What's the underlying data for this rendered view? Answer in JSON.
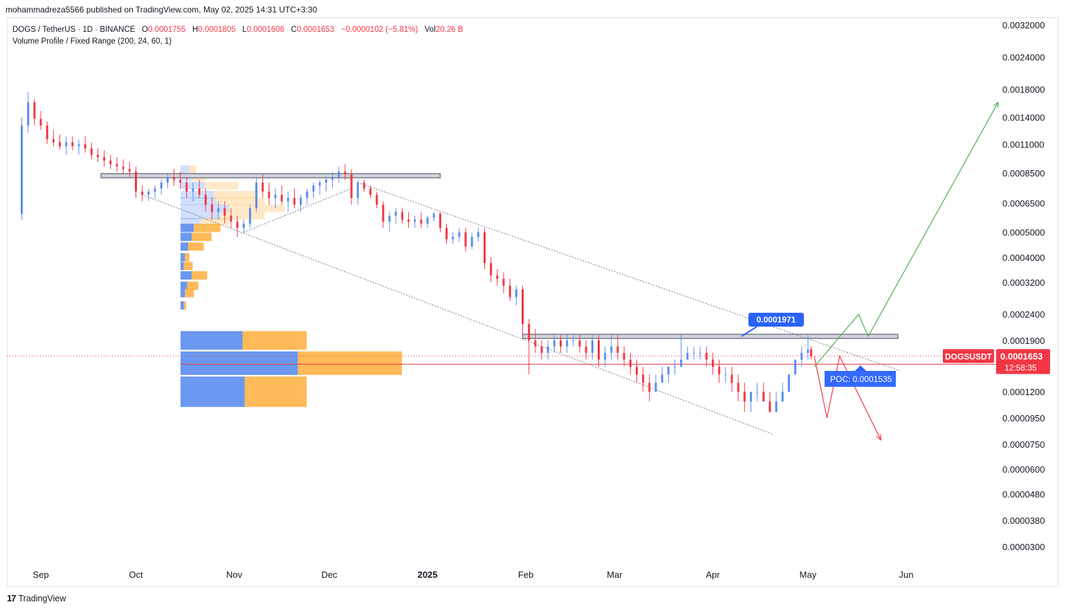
{
  "header": {
    "published": "mohammadreza5566 published on TradingView.com, May 02, 2025 14:31 UTC+3:30"
  },
  "legend": {
    "symbol": "DOGS / TetherUS · 1D · BINANCE",
    "o_label": "O",
    "o": "0.0001755",
    "h_label": "H",
    "h": "0.0001805",
    "l_label": "L",
    "l": "0.0001606",
    "c_label": "C",
    "c": "0.0001653",
    "change": "−0.0000102 (−5.81%)",
    "vol_label": "Vol",
    "vol": "20.26 B",
    "indicator": "Volume Profile / Fixed Range (200, 24, 60, 1)"
  },
  "branding": {
    "logo": "17",
    "name": "TradingView"
  },
  "colors": {
    "up": "#5b8def",
    "down": "#f23645",
    "vp_up": "#5b8def",
    "vp_down": "#ffb347",
    "label_blue": "#2962ff",
    "arrow_green": "#4caf50",
    "arrow_red": "#f23645"
  },
  "chart_data": {
    "type": "candlestick",
    "price_axis": {
      "scale": "log",
      "ticks": [
        "0.0032000",
        "0.0024000",
        "0.0018000",
        "0.0014000",
        "0.0011000",
        "0.0008500",
        "0.0006500",
        "0.0005000",
        "0.0004000",
        "0.0003200",
        "0.0002400",
        "0.0001900",
        "0.0001200",
        "0.0000950",
        "0.0000750",
        "0.0000600",
        "0.0000480",
        "0.0000380",
        "0.0000300"
      ]
    },
    "time_axis": {
      "labels": [
        "Sep",
        "Oct",
        "Nov",
        "Dec",
        "2025",
        "Feb",
        "Mar",
        "Apr",
        "May",
        "Jun"
      ]
    },
    "current_price": {
      "symbol": "DOGSUSDT",
      "price": "0.0001653",
      "countdown": "12:58:35"
    },
    "poc": {
      "text": "POC: 0.0001535",
      "value": 0.0001535
    },
    "callout": {
      "text": "0.0001971",
      "value": 0.0001971
    },
    "series_daily": [
      [
        "2024-08-26",
        0.00059,
        0.0014,
        0.00056,
        0.0013
      ],
      [
        "2024-08-28",
        0.0013,
        0.00175,
        0.00122,
        0.0016
      ],
      [
        "2024-08-30",
        0.0016,
        0.00165,
        0.0013,
        0.00138
      ],
      [
        "2024-09-01",
        0.00138,
        0.00148,
        0.00125,
        0.0013
      ],
      [
        "2024-09-03",
        0.0013,
        0.00135,
        0.0011,
        0.00115
      ],
      [
        "2024-09-05",
        0.00115,
        0.00125,
        0.00108,
        0.00112
      ],
      [
        "2024-09-07",
        0.00112,
        0.0012,
        0.00105,
        0.00108
      ],
      [
        "2024-09-09",
        0.00108,
        0.00118,
        0.001,
        0.00112
      ],
      [
        "2024-09-11",
        0.00112,
        0.00118,
        0.00104,
        0.00108
      ],
      [
        "2024-09-13",
        0.00108,
        0.00115,
        0.001,
        0.0011
      ],
      [
        "2024-09-15",
        0.0011,
        0.00118,
        0.00102,
        0.00106
      ],
      [
        "2024-09-17",
        0.00106,
        0.00112,
        0.00096,
        0.001
      ],
      [
        "2024-09-19",
        0.001,
        0.00106,
        0.00094,
        0.00098
      ],
      [
        "2024-09-21",
        0.00098,
        0.00104,
        0.0009,
        0.00095
      ],
      [
        "2024-09-23",
        0.00095,
        0.001,
        0.00088,
        0.00092
      ],
      [
        "2024-09-25",
        0.00092,
        0.00098,
        0.00086,
        0.0009
      ],
      [
        "2024-09-27",
        0.0009,
        0.00096,
        0.00084,
        0.00088
      ],
      [
        "2024-09-29",
        0.00088,
        0.00094,
        0.00082,
        0.00086
      ],
      [
        "2024-10-01",
        0.00086,
        0.0009,
        0.00068,
        0.00072
      ],
      [
        "2024-10-03",
        0.00072,
        0.00076,
        0.00066,
        0.0007
      ],
      [
        "2024-10-05",
        0.0007,
        0.00074,
        0.00066,
        0.00072
      ],
      [
        "2024-10-07",
        0.00072,
        0.00076,
        0.00068,
        0.00074
      ],
      [
        "2024-10-09",
        0.00074,
        0.0008,
        0.0007,
        0.00078
      ],
      [
        "2024-10-11",
        0.00078,
        0.00084,
        0.00074,
        0.00082
      ],
      [
        "2024-10-13",
        0.00082,
        0.00088,
        0.00076,
        0.0008
      ],
      [
        "2024-10-15",
        0.0008,
        0.00086,
        0.00074,
        0.00078
      ],
      [
        "2024-10-17",
        0.00078,
        0.00082,
        0.00068,
        0.00072
      ],
      [
        "2024-10-19",
        0.00072,
        0.00078,
        0.00066,
        0.00074
      ],
      [
        "2024-10-21",
        0.00074,
        0.0008,
        0.00068,
        0.0007
      ],
      [
        "2024-10-23",
        0.0007,
        0.00074,
        0.0006,
        0.00064
      ],
      [
        "2024-10-25",
        0.00064,
        0.00068,
        0.00056,
        0.0006
      ],
      [
        "2024-10-27",
        0.0006,
        0.00066,
        0.00056,
        0.00062
      ],
      [
        "2024-10-29",
        0.00062,
        0.00066,
        0.00054,
        0.00058
      ],
      [
        "2024-10-31",
        0.00058,
        0.00062,
        0.00052,
        0.00055
      ],
      [
        "2024-11-02",
        0.00055,
        0.00058,
        0.00048,
        0.00052
      ],
      [
        "2024-11-04",
        0.00052,
        0.00056,
        0.0005,
        0.00054
      ],
      [
        "2024-11-06",
        0.00054,
        0.00064,
        0.00052,
        0.00062
      ],
      [
        "2024-11-08",
        0.00062,
        0.00082,
        0.0006,
        0.00078
      ],
      [
        "2024-11-10",
        0.00078,
        0.00084,
        0.00068,
        0.00072
      ],
      [
        "2024-11-12",
        0.00072,
        0.00078,
        0.00064,
        0.00068
      ],
      [
        "2024-11-14",
        0.00068,
        0.00074,
        0.00062,
        0.0007
      ],
      [
        "2024-11-16",
        0.0007,
        0.00076,
        0.00064,
        0.00066
      ],
      [
        "2024-11-18",
        0.00066,
        0.00072,
        0.0006,
        0.00068
      ],
      [
        "2024-11-20",
        0.00068,
        0.00074,
        0.00062,
        0.00064
      ],
      [
        "2024-11-22",
        0.00064,
        0.0007,
        0.0006,
        0.00068
      ],
      [
        "2024-11-24",
        0.00068,
        0.00074,
        0.00064,
        0.00072
      ],
      [
        "2024-11-26",
        0.00072,
        0.00078,
        0.00068,
        0.00076
      ],
      [
        "2024-11-28",
        0.00076,
        0.0008,
        0.0007,
        0.00078
      ],
      [
        "2024-11-30",
        0.00078,
        0.00082,
        0.00072,
        0.0008
      ],
      [
        "2024-12-02",
        0.0008,
        0.00086,
        0.00074,
        0.00082
      ],
      [
        "2024-12-04",
        0.00082,
        0.0009,
        0.00078,
        0.00086
      ],
      [
        "2024-12-06",
        0.00086,
        0.00092,
        0.0008,
        0.00084
      ],
      [
        "2024-12-08",
        0.00084,
        0.00088,
        0.00064,
        0.00068
      ],
      [
        "2024-12-10",
        0.00068,
        0.0008,
        0.00064,
        0.00078
      ],
      [
        "2024-12-12",
        0.00078,
        0.0008,
        0.00072,
        0.00074
      ],
      [
        "2024-12-14",
        0.00074,
        0.00076,
        0.00068,
        0.0007
      ],
      [
        "2024-12-16",
        0.0007,
        0.00072,
        0.00062,
        0.00064
      ],
      [
        "2024-12-18",
        0.00064,
        0.00066,
        0.00052,
        0.00055
      ],
      [
        "2024-12-20",
        0.00055,
        0.0006,
        0.0005,
        0.00058
      ],
      [
        "2024-12-22",
        0.00058,
        0.00062,
        0.00054,
        0.0006
      ],
      [
        "2024-12-24",
        0.0006,
        0.00062,
        0.00054,
        0.00056
      ],
      [
        "2024-12-26",
        0.00056,
        0.0006,
        0.00052,
        0.00055
      ],
      [
        "2024-12-28",
        0.00055,
        0.00058,
        0.00052,
        0.00056
      ],
      [
        "2024-12-30",
        0.00056,
        0.0006,
        0.00052,
        0.00054
      ],
      [
        "2025-01-01",
        0.00054,
        0.00058,
        0.00052,
        0.00057
      ],
      [
        "2025-01-03",
        0.00057,
        0.0006,
        0.00055,
        0.00059
      ],
      [
        "2025-01-05",
        0.00059,
        0.0006,
        0.0005,
        0.00052
      ],
      [
        "2025-01-07",
        0.00052,
        0.00054,
        0.00045,
        0.00047
      ],
      [
        "2025-01-09",
        0.00047,
        0.0005,
        0.00045,
        0.00048
      ],
      [
        "2025-01-11",
        0.00048,
        0.00052,
        0.00046,
        0.0005
      ],
      [
        "2025-01-13",
        0.0005,
        0.00052,
        0.00042,
        0.00044
      ],
      [
        "2025-01-15",
        0.00044,
        0.0005,
        0.00043,
        0.00048
      ],
      [
        "2025-01-17",
        0.00048,
        0.00052,
        0.00046,
        0.0005
      ],
      [
        "2025-01-19",
        0.0005,
        0.00052,
        0.00036,
        0.00038
      ],
      [
        "2025-01-21",
        0.00038,
        0.0004,
        0.00032,
        0.00034
      ],
      [
        "2025-01-23",
        0.00034,
        0.00036,
        0.00031,
        0.00033
      ],
      [
        "2025-01-25",
        0.00033,
        0.00035,
        0.00029,
        0.00031
      ],
      [
        "2025-01-27",
        0.00031,
        0.00033,
        0.00027,
        0.00028
      ],
      [
        "2025-01-29",
        0.00028,
        0.00031,
        0.00026,
        0.0003
      ],
      [
        "2025-01-31",
        0.0003,
        0.00031,
        0.0002,
        0.00022
      ],
      [
        "2025-02-02",
        0.00022,
        0.00023,
        0.00014,
        0.00019
      ],
      [
        "2025-02-04",
        0.00019,
        0.00021,
        0.00017,
        0.00018
      ],
      [
        "2025-02-06",
        0.00018,
        0.00019,
        0.00016,
        0.00017
      ],
      [
        "2025-02-08",
        0.00017,
        0.00019,
        0.00016,
        0.00018
      ],
      [
        "2025-02-10",
        0.00018,
        0.0002,
        0.00017,
        0.00019
      ],
      [
        "2025-02-12",
        0.00019,
        0.0002,
        0.00017,
        0.00018
      ],
      [
        "2025-02-14",
        0.00018,
        0.0002,
        0.00017,
        0.00019
      ],
      [
        "2025-02-16",
        0.00019,
        0.0002,
        0.00018,
        0.00019
      ],
      [
        "2025-02-18",
        0.00019,
        0.0002,
        0.00017,
        0.00018
      ],
      [
        "2025-02-20",
        0.00018,
        0.00019,
        0.00016,
        0.00017
      ],
      [
        "2025-02-22",
        0.00017,
        0.0002,
        0.00016,
        0.00019
      ],
      [
        "2025-02-24",
        0.00019,
        0.0002,
        0.00015,
        0.00016
      ],
      [
        "2025-02-26",
        0.00016,
        0.00018,
        0.00015,
        0.00017
      ],
      [
        "2025-02-28",
        0.00017,
        0.0002,
        0.00016,
        0.00018
      ],
      [
        "2025-03-02",
        0.00018,
        0.0002,
        0.00016,
        0.00017
      ],
      [
        "2025-03-04",
        0.00017,
        0.00018,
        0.00015,
        0.00016
      ],
      [
        "2025-03-06",
        0.00016,
        0.00017,
        0.00014,
        0.00015
      ],
      [
        "2025-03-08",
        0.00015,
        0.00016,
        0.00013,
        0.00014
      ],
      [
        "2025-03-10",
        0.00014,
        0.00015,
        0.00012,
        0.00013
      ],
      [
        "2025-03-12",
        0.00013,
        0.00014,
        0.00011,
        0.00012
      ],
      [
        "2025-03-14",
        0.00012,
        0.00014,
        0.00012,
        0.00013
      ],
      [
        "2025-03-16",
        0.00013,
        0.00015,
        0.00013,
        0.00014
      ],
      [
        "2025-03-18",
        0.00014,
        0.00015,
        0.00013,
        0.00015
      ],
      [
        "2025-03-20",
        0.00015,
        0.00016,
        0.00014,
        0.00015
      ],
      [
        "2025-03-22",
        0.00015,
        0.0002,
        0.00015,
        0.00016
      ],
      [
        "2025-03-24",
        0.00016,
        0.00018,
        0.00016,
        0.00017
      ],
      [
        "2025-03-26",
        0.00017,
        0.00018,
        0.00016,
        0.00017
      ],
      [
        "2025-03-28",
        0.00017,
        0.00018,
        0.00016,
        0.00017
      ],
      [
        "2025-03-30",
        0.00017,
        0.00018,
        0.00015,
        0.00016
      ],
      [
        "2025-04-01",
        0.00016,
        0.00017,
        0.00014,
        0.00015
      ],
      [
        "2025-04-03",
        0.00015,
        0.00016,
        0.00013,
        0.00014
      ],
      [
        "2025-04-05",
        0.00014,
        0.00015,
        0.00013,
        0.00014
      ],
      [
        "2025-04-07",
        0.00014,
        0.00015,
        0.00012,
        0.00013
      ],
      [
        "2025-04-09",
        0.00013,
        0.00014,
        0.00011,
        0.00012
      ],
      [
        "2025-04-11",
        0.00012,
        0.00013,
        0.0001,
        0.00011
      ],
      [
        "2025-04-13",
        0.00011,
        0.00012,
        0.0001,
        0.00012
      ],
      [
        "2025-04-15",
        0.00012,
        0.00013,
        0.00011,
        0.00012
      ],
      [
        "2025-04-17",
        0.00012,
        0.00013,
        0.00011,
        0.00011
      ],
      [
        "2025-04-19",
        0.00011,
        0.00012,
        0.0001,
        0.0001
      ],
      [
        "2025-04-21",
        0.0001,
        0.00012,
        0.0001,
        0.00011
      ],
      [
        "2025-04-23",
        0.00011,
        0.00013,
        0.00011,
        0.00012
      ],
      [
        "2025-04-25",
        0.00012,
        0.00014,
        0.00012,
        0.00014
      ],
      [
        "2025-04-27",
        0.00014,
        0.00016,
        0.00014,
        0.00016
      ],
      [
        "2025-04-29",
        0.00016,
        0.00018,
        0.00015,
        0.00017
      ],
      [
        "2025-05-01",
        0.00017,
        0.0002,
        0.00016,
        0.000175
      ],
      [
        "2025-05-02",
        0.0001755,
        0.0001805,
        0.0001606,
        0.0001653
      ]
    ],
    "horizontal_zones": [
      {
        "from": "2024-09-20",
        "to": "2025-01-05",
        "value": 0.00083
      },
      {
        "from": "2025-01-31",
        "to": "2025-06-30",
        "value": 0.000197
      }
    ],
    "current_line": 0.0001653,
    "poc_line": 0.0001535,
    "channel_lines": [
      {
        "from": [
          "2024-10-03",
          0.0007
        ],
        "to": [
          "2025-04-20",
          8.2e-05
        ]
      },
      {
        "from": [
          "2024-12-10",
          0.00078
        ],
        "to": [
          "2025-05-30",
          0.000145
        ]
      },
      {
        "from": [
          "2024-11-04",
          0.0005
        ],
        "to": [
          "2024-12-08",
          0.00074
        ]
      }
    ],
    "projection_up": [
      [
        "2025-05-03",
        0.00015
      ],
      [
        "2025-05-17",
        0.00024
      ],
      [
        "2025-05-20",
        0.000197
      ],
      [
        "2025-06-30",
        0.0016
      ]
    ],
    "projection_down": [
      [
        "2025-05-03",
        0.000165
      ],
      [
        "2025-05-07",
        9.5e-05
      ],
      [
        "2025-05-11",
        0.000165
      ],
      [
        "2025-05-24",
        7.8e-05
      ]
    ],
    "volume_profile": {
      "upper": [
        [
          0.00088,
          0.08,
          0.06
        ],
        [
          0.00082,
          0.1,
          0.14
        ],
        [
          0.00076,
          0.22,
          0.3
        ],
        [
          0.0007,
          0.3,
          0.4
        ],
        [
          0.00066,
          0.32,
          0.44
        ],
        [
          0.00062,
          0.44,
          0.5
        ],
        [
          0.00058,
          0.36,
          0.4
        ],
        [
          0.00055,
          0.18,
          0.26
        ]
      ],
      "lower": [
        [
          0.00052,
          0.12,
          0.24
        ],
        [
          0.00048,
          0.1,
          0.18
        ],
        [
          0.00044,
          0.07,
          0.14
        ],
        [
          0.0004,
          0.04,
          0.04
        ],
        [
          0.00037,
          0.03,
          0.08
        ],
        [
          0.00034,
          0.1,
          0.14
        ],
        [
          0.00031,
          0.06,
          0.1
        ],
        [
          0.00029,
          0.04,
          0.08
        ],
        [
          0.00026,
          0.03,
          0.02
        ],
        [
          0.00019,
          0.56,
          0.58
        ],
        [
          0.000155,
          1.06,
          0.94
        ],
        [
          0.00012,
          0.58,
          0.56
        ]
      ]
    }
  }
}
